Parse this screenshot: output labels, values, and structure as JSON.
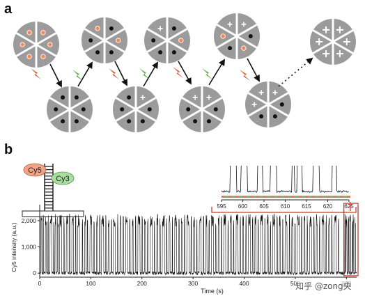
{
  "figure": {
    "panel_a": {
      "letter": "a"
    },
    "panel_b": {
      "letter": "b",
      "duplex": {
        "dye_red": "Cy5",
        "dye_green": "Cy3"
      },
      "colors": {
        "cy5": "#f2a488",
        "cy3": "#a9dca0",
        "inset_border": "#c8392b",
        "green_bar": "#6fbf5a",
        "red_bar": "#e07a5a"
      }
    },
    "watermark": "知乎 @zong央"
  },
  "chart_data": [
    {
      "type": "line",
      "title": "",
      "xlabel": "Time (s)",
      "ylabel": "Cy5 intensity (a.u.)",
      "xlim": [
        0,
        620
      ],
      "ylim": [
        -100,
        2500
      ],
      "x_ticks": [
        0,
        100,
        200,
        300,
        400,
        500,
        600
      ],
      "y_ticks": [
        0,
        1000,
        2000
      ],
      "y_tick_labels": [
        "0",
        "1,000",
        "2,000"
      ],
      "x_tick_labels": [
        "0",
        "100",
        "200",
        "300",
        "400",
        "500",
        "600"
      ],
      "levels": {
        "low": 0,
        "high": 2000
      },
      "series": [
        {
          "name": "",
          "description_levels": "two-state switching trace",
          "on_intervals": [
            [
              2,
              4
            ],
            [
              6,
              7.5
            ],
            [
              11,
              13
            ],
            [
              16,
              17
            ],
            [
              20,
              24
            ],
            [
              27,
              28
            ],
            [
              30,
              32
            ],
            [
              35,
              36.5
            ],
            [
              39,
              43
            ],
            [
              47,
              48
            ],
            [
              52,
              55
            ],
            [
              58,
              59
            ],
            [
              63,
              66
            ],
            [
              70,
              71
            ],
            [
              74,
              78
            ],
            [
              83,
              84
            ],
            [
              88,
              90
            ],
            [
              93,
              94
            ],
            [
              98,
              102
            ],
            [
              106,
              107
            ],
            [
              111,
              113
            ],
            [
              117,
              118
            ],
            [
              121,
              125
            ],
            [
              129,
              130
            ],
            [
              134,
              136
            ],
            [
              140,
              141
            ],
            [
              144,
              148
            ],
            [
              152,
              153
            ],
            [
              157,
              159
            ],
            [
              163,
              164
            ],
            [
              168,
              172
            ],
            [
              176,
              177
            ],
            [
              181,
              183
            ],
            [
              187,
              188
            ],
            [
              192,
              196
            ],
            [
              200,
              201
            ],
            [
              205,
              207
            ],
            [
              211,
              212
            ],
            [
              216,
              220
            ],
            [
              224,
              225
            ],
            [
              229,
              231
            ],
            [
              235,
              236
            ],
            [
              240,
              244
            ],
            [
              248,
              249
            ],
            [
              253,
              255
            ],
            [
              259,
              260
            ],
            [
              264,
              268
            ],
            [
              272,
              273
            ],
            [
              277,
              279
            ],
            [
              283,
              284
            ],
            [
              288,
              292
            ],
            [
              296,
              297
            ],
            [
              301,
              303
            ],
            [
              307,
              308
            ],
            [
              312,
              316
            ],
            [
              320,
              321
            ],
            [
              325,
              327
            ],
            [
              331,
              332
            ],
            [
              336,
              340
            ],
            [
              344,
              345
            ],
            [
              349,
              351
            ],
            [
              355,
              356
            ],
            [
              360,
              364
            ],
            [
              368,
              369
            ],
            [
              373,
              375
            ],
            [
              379,
              380
            ],
            [
              384,
              388
            ],
            [
              392,
              393
            ],
            [
              397,
              399
            ],
            [
              403,
              404
            ],
            [
              408,
              412
            ],
            [
              416,
              417
            ],
            [
              421,
              423
            ],
            [
              427,
              428
            ],
            [
              432,
              436
            ],
            [
              440,
              441
            ],
            [
              445,
              447
            ],
            [
              451,
              452
            ],
            [
              456,
              460
            ],
            [
              464,
              465
            ],
            [
              469,
              471
            ],
            [
              475,
              476
            ],
            [
              480,
              484
            ],
            [
              488,
              489
            ],
            [
              493,
              495
            ],
            [
              499,
              500
            ],
            [
              504,
              508
            ],
            [
              512,
              513
            ],
            [
              517,
              519
            ],
            [
              523,
              524
            ],
            [
              528,
              532
            ],
            [
              536,
              537
            ],
            [
              541,
              543
            ],
            [
              547,
              548
            ],
            [
              552,
              556
            ],
            [
              560,
              561
            ],
            [
              565,
              567
            ],
            [
              571,
              572
            ],
            [
              576,
              580
            ],
            [
              584,
              585
            ],
            [
              597,
              598.5
            ],
            [
              599.5,
              601
            ],
            [
              603.5,
              604.6
            ],
            [
              606.5,
              608
            ],
            [
              611.5,
              612.2
            ],
            [
              612.8,
              614
            ],
            [
              616.5,
              618
            ],
            [
              621,
              622
            ]
          ]
        }
      ]
    },
    {
      "type": "line",
      "title": "",
      "xlim": [
        595,
        625
      ],
      "x_ticks": [
        595,
        600,
        605,
        610,
        615,
        620,
        625
      ],
      "x_tick_labels": [
        "595",
        "600",
        "605",
        "610",
        "615",
        "620",
        "625"
      ],
      "on_intervals": [
        [
          597,
          598.5
        ],
        [
          599.5,
          601
        ],
        [
          603.5,
          604.6
        ],
        [
          606.5,
          608
        ],
        [
          611.5,
          612.2
        ],
        [
          612.8,
          614
        ],
        [
          616.5,
          618
        ],
        [
          621,
          622
        ]
      ]
    }
  ]
}
